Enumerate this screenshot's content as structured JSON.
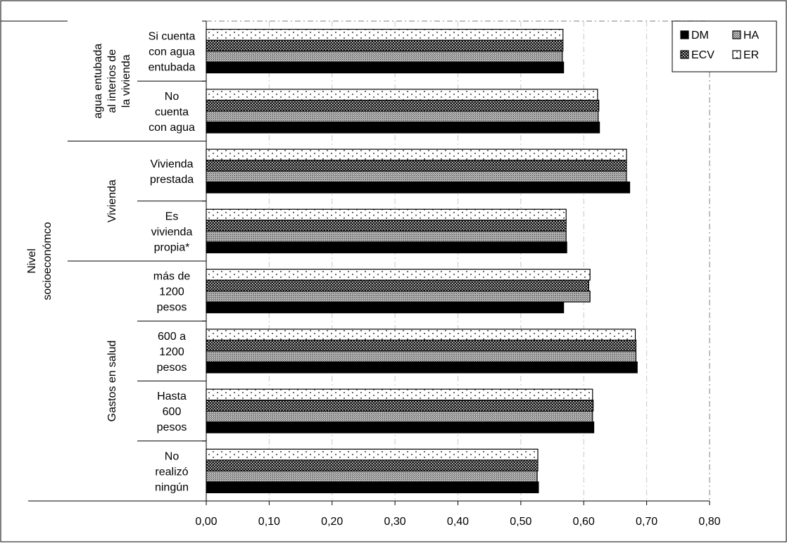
{
  "chart_data": {
    "type": "bar",
    "orientation": "horizontal",
    "title": "",
    "xlabel": "",
    "ylabel": "",
    "xlim": [
      0,
      0.8
    ],
    "x_ticks": [
      "0,00",
      "0,10",
      "0,20",
      "0,30",
      "0,40",
      "0,50",
      "0,60",
      "0,70",
      "0,80"
    ],
    "grid": "vertical dash-dot",
    "legend_position": "top-right",
    "outer_label": [
      "Nivel",
      "socioeconómco"
    ],
    "groups": [
      {
        "name_lines": [
          "agua entubada",
          "al interios de",
          "la vivienda"
        ],
        "categories": [
          0,
          1
        ]
      },
      {
        "name_lines": [
          "Vivienda"
        ],
        "categories": [
          2,
          3
        ]
      },
      {
        "name_lines": [
          "Gastos en salud"
        ],
        "categories": [
          4,
          5,
          6,
          7
        ]
      }
    ],
    "categories": [
      [
        "Si cuenta",
        "con agua",
        "entubada"
      ],
      [
        "No",
        "cuenta",
        "con agua"
      ],
      [
        "Vivienda",
        "prestada"
      ],
      [
        "Es",
        "vivienda",
        "propia*"
      ],
      [
        "más de",
        "1200",
        "pesos"
      ],
      [
        "600 a",
        "1200",
        "pesos"
      ],
      [
        "Hasta",
        "600",
        "pesos"
      ],
      [
        "No",
        "realizó",
        "ningún"
      ]
    ],
    "series": [
      {
        "name": "DM",
        "color": "#000000",
        "pattern": "solid",
        "values": [
          0.568,
          0.625,
          0.673,
          0.573,
          0.568,
          0.685,
          0.616,
          0.528
        ]
      },
      {
        "name": "HA",
        "color": "#7a7a7a",
        "pattern": "fine-hatch",
        "values": [
          0.566,
          0.623,
          0.668,
          0.572,
          0.61,
          0.683,
          0.614,
          0.526
        ]
      },
      {
        "name": "ECV",
        "color": "#222222",
        "pattern": "checker",
        "values": [
          0.567,
          0.624,
          0.668,
          0.572,
          0.608,
          0.683,
          0.615,
          0.527
        ]
      },
      {
        "name": "ER",
        "color": "#ffffff",
        "pattern": "dots",
        "values": [
          0.567,
          0.622,
          0.668,
          0.572,
          0.61,
          0.682,
          0.614,
          0.527
        ]
      }
    ],
    "legend_layout": [
      [
        "DM",
        "HA"
      ],
      [
        "ECV",
        "ER"
      ]
    ]
  }
}
